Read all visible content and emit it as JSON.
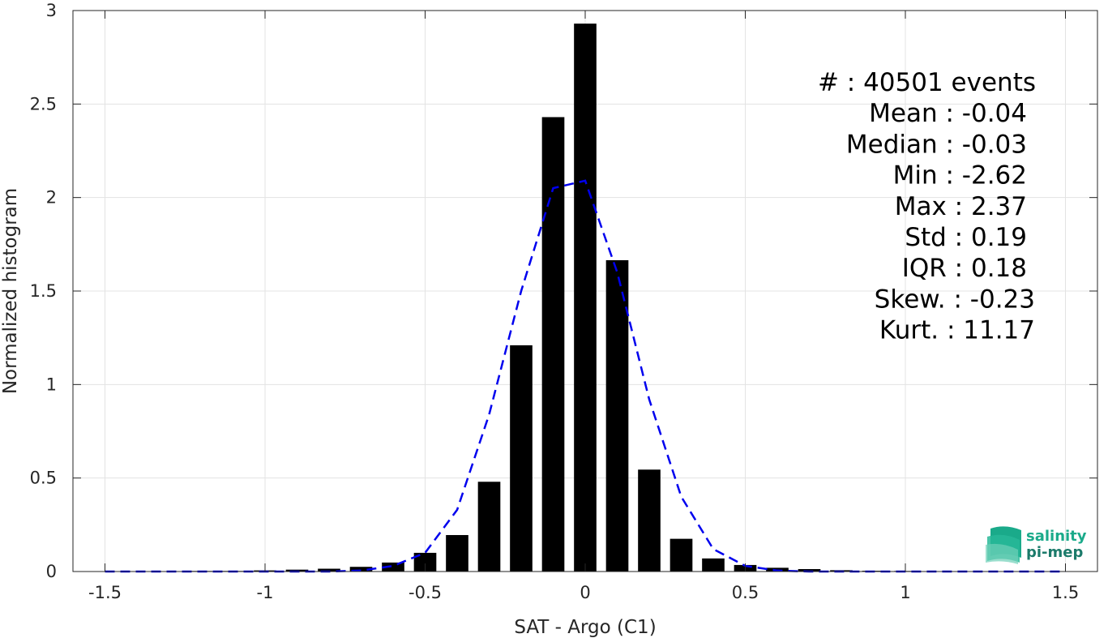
{
  "chart_data": {
    "type": "bar",
    "xlabel": "SAT - Argo (C1)",
    "ylabel": "Normalized histogram",
    "xlim": [
      -1.6,
      1.6
    ],
    "ylim": [
      0,
      3
    ],
    "xticks": [
      -1.5,
      -1,
      -0.5,
      0,
      0.5,
      1,
      1.5
    ],
    "xtick_labels": [
      "-1.5",
      "-1",
      "-0.5",
      "0",
      "0.5",
      "1",
      "1.5"
    ],
    "yticks": [
      0,
      0.5,
      1,
      1.5,
      2,
      2.5,
      3
    ],
    "ytick_labels": [
      "0",
      "0.5",
      "1",
      "1.5",
      "2",
      "2.5",
      "3"
    ],
    "grid": true,
    "bar_width": 0.07,
    "bars": {
      "x": [
        -1.5,
        -1.4,
        -1.3,
        -1.2,
        -1.1,
        -1.0,
        -0.9,
        -0.8,
        -0.7,
        -0.6,
        -0.5,
        -0.4,
        -0.3,
        -0.2,
        -0.1,
        0.0,
        0.1,
        0.2,
        0.3,
        0.4,
        0.5,
        0.6,
        0.7,
        0.8,
        0.9,
        1.0,
        1.1,
        1.2,
        1.3,
        1.4,
        1.5
      ],
      "values": [
        0.002,
        0.002,
        0.002,
        0.003,
        0.003,
        0.006,
        0.01,
        0.015,
        0.025,
        0.048,
        0.1,
        0.195,
        0.48,
        1.21,
        2.43,
        2.93,
        1.665,
        0.545,
        0.175,
        0.07,
        0.035,
        0.02,
        0.013,
        0.007,
        0.004,
        0.003,
        0.002,
        0.002,
        0.002,
        0.002,
        0.002
      ],
      "color": "#000000"
    },
    "fit_curve": {
      "style": "dashed",
      "color": "#0000ee",
      "x": [
        -1.5,
        -1.4,
        -1.3,
        -1.2,
        -1.1,
        -1.0,
        -0.9,
        -0.8,
        -0.7,
        -0.6,
        -0.5,
        -0.4,
        -0.3,
        -0.2,
        -0.1,
        0.0,
        0.1,
        0.2,
        0.3,
        0.4,
        0.5,
        0.6,
        0.7,
        0.8,
        0.9,
        1.0,
        1.1,
        1.2,
        1.3,
        1.4,
        1.5
      ],
      "values": [
        0,
        0,
        0,
        0,
        0,
        0,
        0,
        0,
        0.005,
        0.03,
        0.1,
        0.33,
        0.84,
        1.5,
        2.05,
        2.09,
        1.6,
        0.92,
        0.4,
        0.12,
        0.03,
        0.005,
        0,
        0,
        0,
        0,
        0,
        0,
        0,
        0,
        0
      ]
    },
    "annotations": [
      {
        "label": "#  : 40501 events"
      },
      {
        "label": "Mean : -0.04"
      },
      {
        "label": "Median : -0.03"
      },
      {
        "label": "Min : -2.62"
      },
      {
        "label": "Max : 2.37"
      },
      {
        "label": "Std : 0.19"
      },
      {
        "label": "IQR : 0.18"
      },
      {
        "label": "Skew. : -0.23"
      },
      {
        "label": "Kurt. : 11.17"
      }
    ]
  },
  "logo": {
    "line1": "salinity",
    "line2": "pi-mep",
    "color_top": "#1aaa8a",
    "color_bottom": "#1b7a6a"
  }
}
